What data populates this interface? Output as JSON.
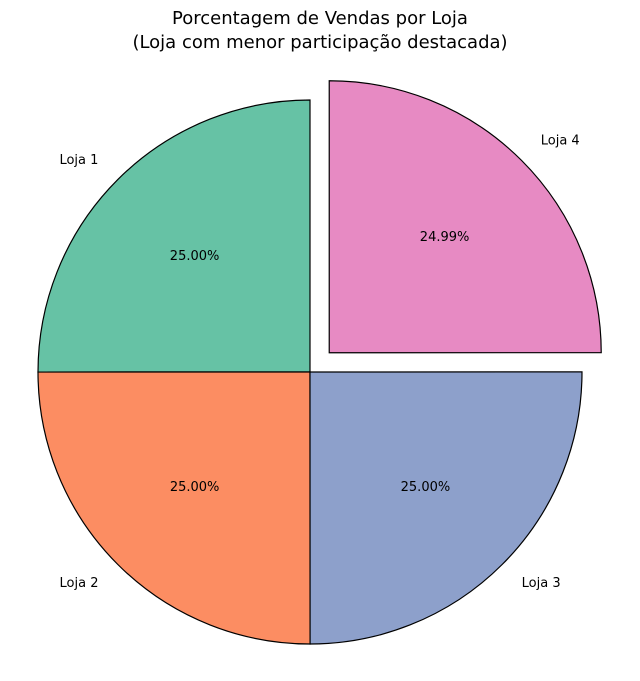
{
  "chart_data": {
    "type": "pie",
    "title_lines": [
      "Porcentagem de Vendas por Loja",
      "(Loja com menor participação destacada)"
    ],
    "categories": [
      "Loja 1",
      "Loja 2",
      "Loja 3",
      "Loja 4"
    ],
    "values": [
      25.0,
      25.0,
      25.0,
      24.99
    ],
    "value_labels": [
      "25.00%",
      "25.00%",
      "25.00%",
      "24.99%"
    ],
    "colors": [
      "#66c2a5",
      "#fc8d62",
      "#8da0cb",
      "#e78ac3"
    ],
    "explode": [
      0,
      0,
      0,
      0.1
    ],
    "start_angle_deg": 90,
    "direction": "counterclockwise",
    "edge_color": "#000000"
  }
}
